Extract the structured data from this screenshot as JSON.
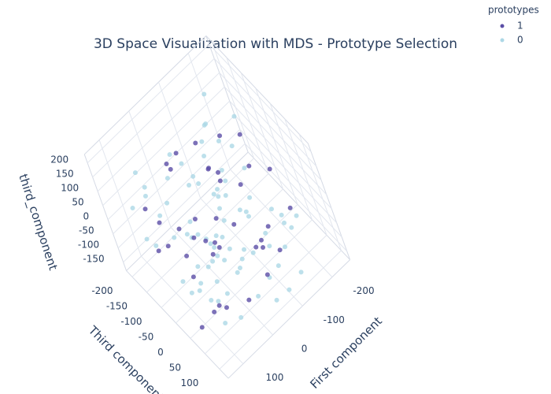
{
  "chart_data": {
    "type": "scatter3d",
    "title": "3D Space Visualization with MDS - Prototype Selection",
    "xlabel": "First component",
    "ylabel": "Third component",
    "zlabel": "third_component",
    "legend_title": "prototypes",
    "xlim": [
      -260,
      150
    ],
    "ylim": [
      -220,
      130
    ],
    "zlim": [
      -180,
      230
    ],
    "xticks": [
      -200,
      -100,
      0,
      100
    ],
    "yticks": [
      -200,
      -150,
      -100,
      -50,
      0,
      50,
      100
    ],
    "zticks": [
      -150,
      -100,
      -50,
      0,
      50,
      100,
      150,
      200
    ],
    "grid": true,
    "series": [
      {
        "name": "1",
        "color": "#5b4ea6",
        "x": [
          -150,
          -90,
          40,
          -20,
          60,
          -180,
          10,
          -60,
          90,
          -120,
          30,
          -40,
          70,
          -100,
          0,
          -70,
          110,
          -160,
          50,
          -30,
          -200,
          80,
          -10,
          20,
          -130,
          100,
          -50,
          -80,
          120,
          -110,
          5,
          -140,
          65,
          -25,
          35,
          -95,
          85,
          -170,
          15,
          -55
        ],
        "y": [
          -100,
          50,
          20,
          -150,
          -60,
          80,
          90,
          -30,
          10,
          -120,
          60,
          -80,
          -170,
          30,
          -40,
          100,
          -90,
          -20,
          40,
          -110,
          0,
          70,
          -140,
          -10,
          50,
          -50,
          110,
          -70,
          20,
          -160,
          60,
          10,
          -130,
          80,
          -100,
          -60,
          40,
          -30,
          -80,
          90
        ],
        "z": [
          120,
          -50,
          150,
          80,
          -120,
          30,
          -90,
          170,
          60,
          -30,
          100,
          -140,
          10,
          140,
          -80,
          50,
          -10,
          90,
          -130,
          170,
          60,
          -60,
          120,
          20,
          -100,
          40,
          -40,
          110,
          -150,
          70,
          160,
          -70,
          0,
          130,
          -20,
          90,
          -110,
          180,
          -50,
          30
        ]
      },
      {
        "name": "0",
        "color": "#add8e6",
        "x": [
          -180,
          -150,
          -120,
          -90,
          -60,
          -30,
          0,
          30,
          60,
          90,
          120,
          -170,
          -140,
          -110,
          -80,
          -50,
          -20,
          10,
          40,
          70,
          100,
          -160,
          -130,
          -100,
          -70,
          -40,
          -10,
          20,
          50,
          80,
          110,
          -190,
          -145,
          -115,
          -85,
          -55,
          -25,
          5,
          35,
          65,
          95,
          -175,
          -135,
          -105,
          -75,
          -45,
          -15,
          15,
          45,
          75,
          105,
          -165,
          -125,
          -95,
          -65,
          -35,
          -5,
          25,
          55,
          85,
          -155,
          -128,
          -98,
          -68,
          -38,
          -8,
          22,
          52,
          82,
          112,
          -188,
          -148,
          -118,
          -88,
          -58,
          -28,
          2,
          32,
          62,
          92
        ],
        "y": [
          -170,
          40,
          -90,
          100,
          -20,
          60,
          -140,
          10,
          -60,
          90,
          -110,
          70,
          -30,
          -160,
          20,
          110,
          -80,
          -10,
          50,
          -130,
          80,
          -50,
          0,
          -100,
          30,
          -170,
          60,
          -40,
          100,
          -120,
          10,
          -70,
          90,
          -150,
          40,
          -10,
          -90,
          70,
          -180,
          20,
          -50,
          110,
          -130,
          0,
          60,
          -80,
          30,
          -110,
          80,
          -20,
          -160,
          50,
          -60,
          100,
          -140,
          10,
          -30,
          70,
          -100,
          40,
          -170,
          90,
          -70,
          -10,
          20,
          -120,
          60,
          -50,
          110,
          -90,
          0,
          -150,
          30,
          80,
          -40,
          -110,
          50,
          -20,
          -170,
          100
        ],
        "z": [
          160,
          -120,
          40,
          -60,
          110,
          -150,
          80,
          -20,
          140,
          -90,
          20,
          -40,
          170,
          -110,
          60,
          -130,
          100,
          0,
          -80,
          130,
          -10,
          50,
          -140,
          150,
          -70,
          90,
          -30,
          10,
          -100,
          120,
          -50,
          180,
          -150,
          30,
          70,
          -120,
          160,
          -20,
          -60,
          110,
          -90,
          40,
          140,
          -10,
          -130,
          80,
          0,
          -70,
          120,
          -110,
          60,
          -40,
          170,
          -150,
          20,
          100,
          -80,
          130,
          -30,
          50,
          -120,
          90,
          -5,
          -100,
          150,
          -60,
          30,
          -140,
          70,
          10,
          -90,
          110,
          -50,
          160,
          -20,
          -130,
          80,
          -70,
          130,
          0
        ]
      }
    ]
  }
}
